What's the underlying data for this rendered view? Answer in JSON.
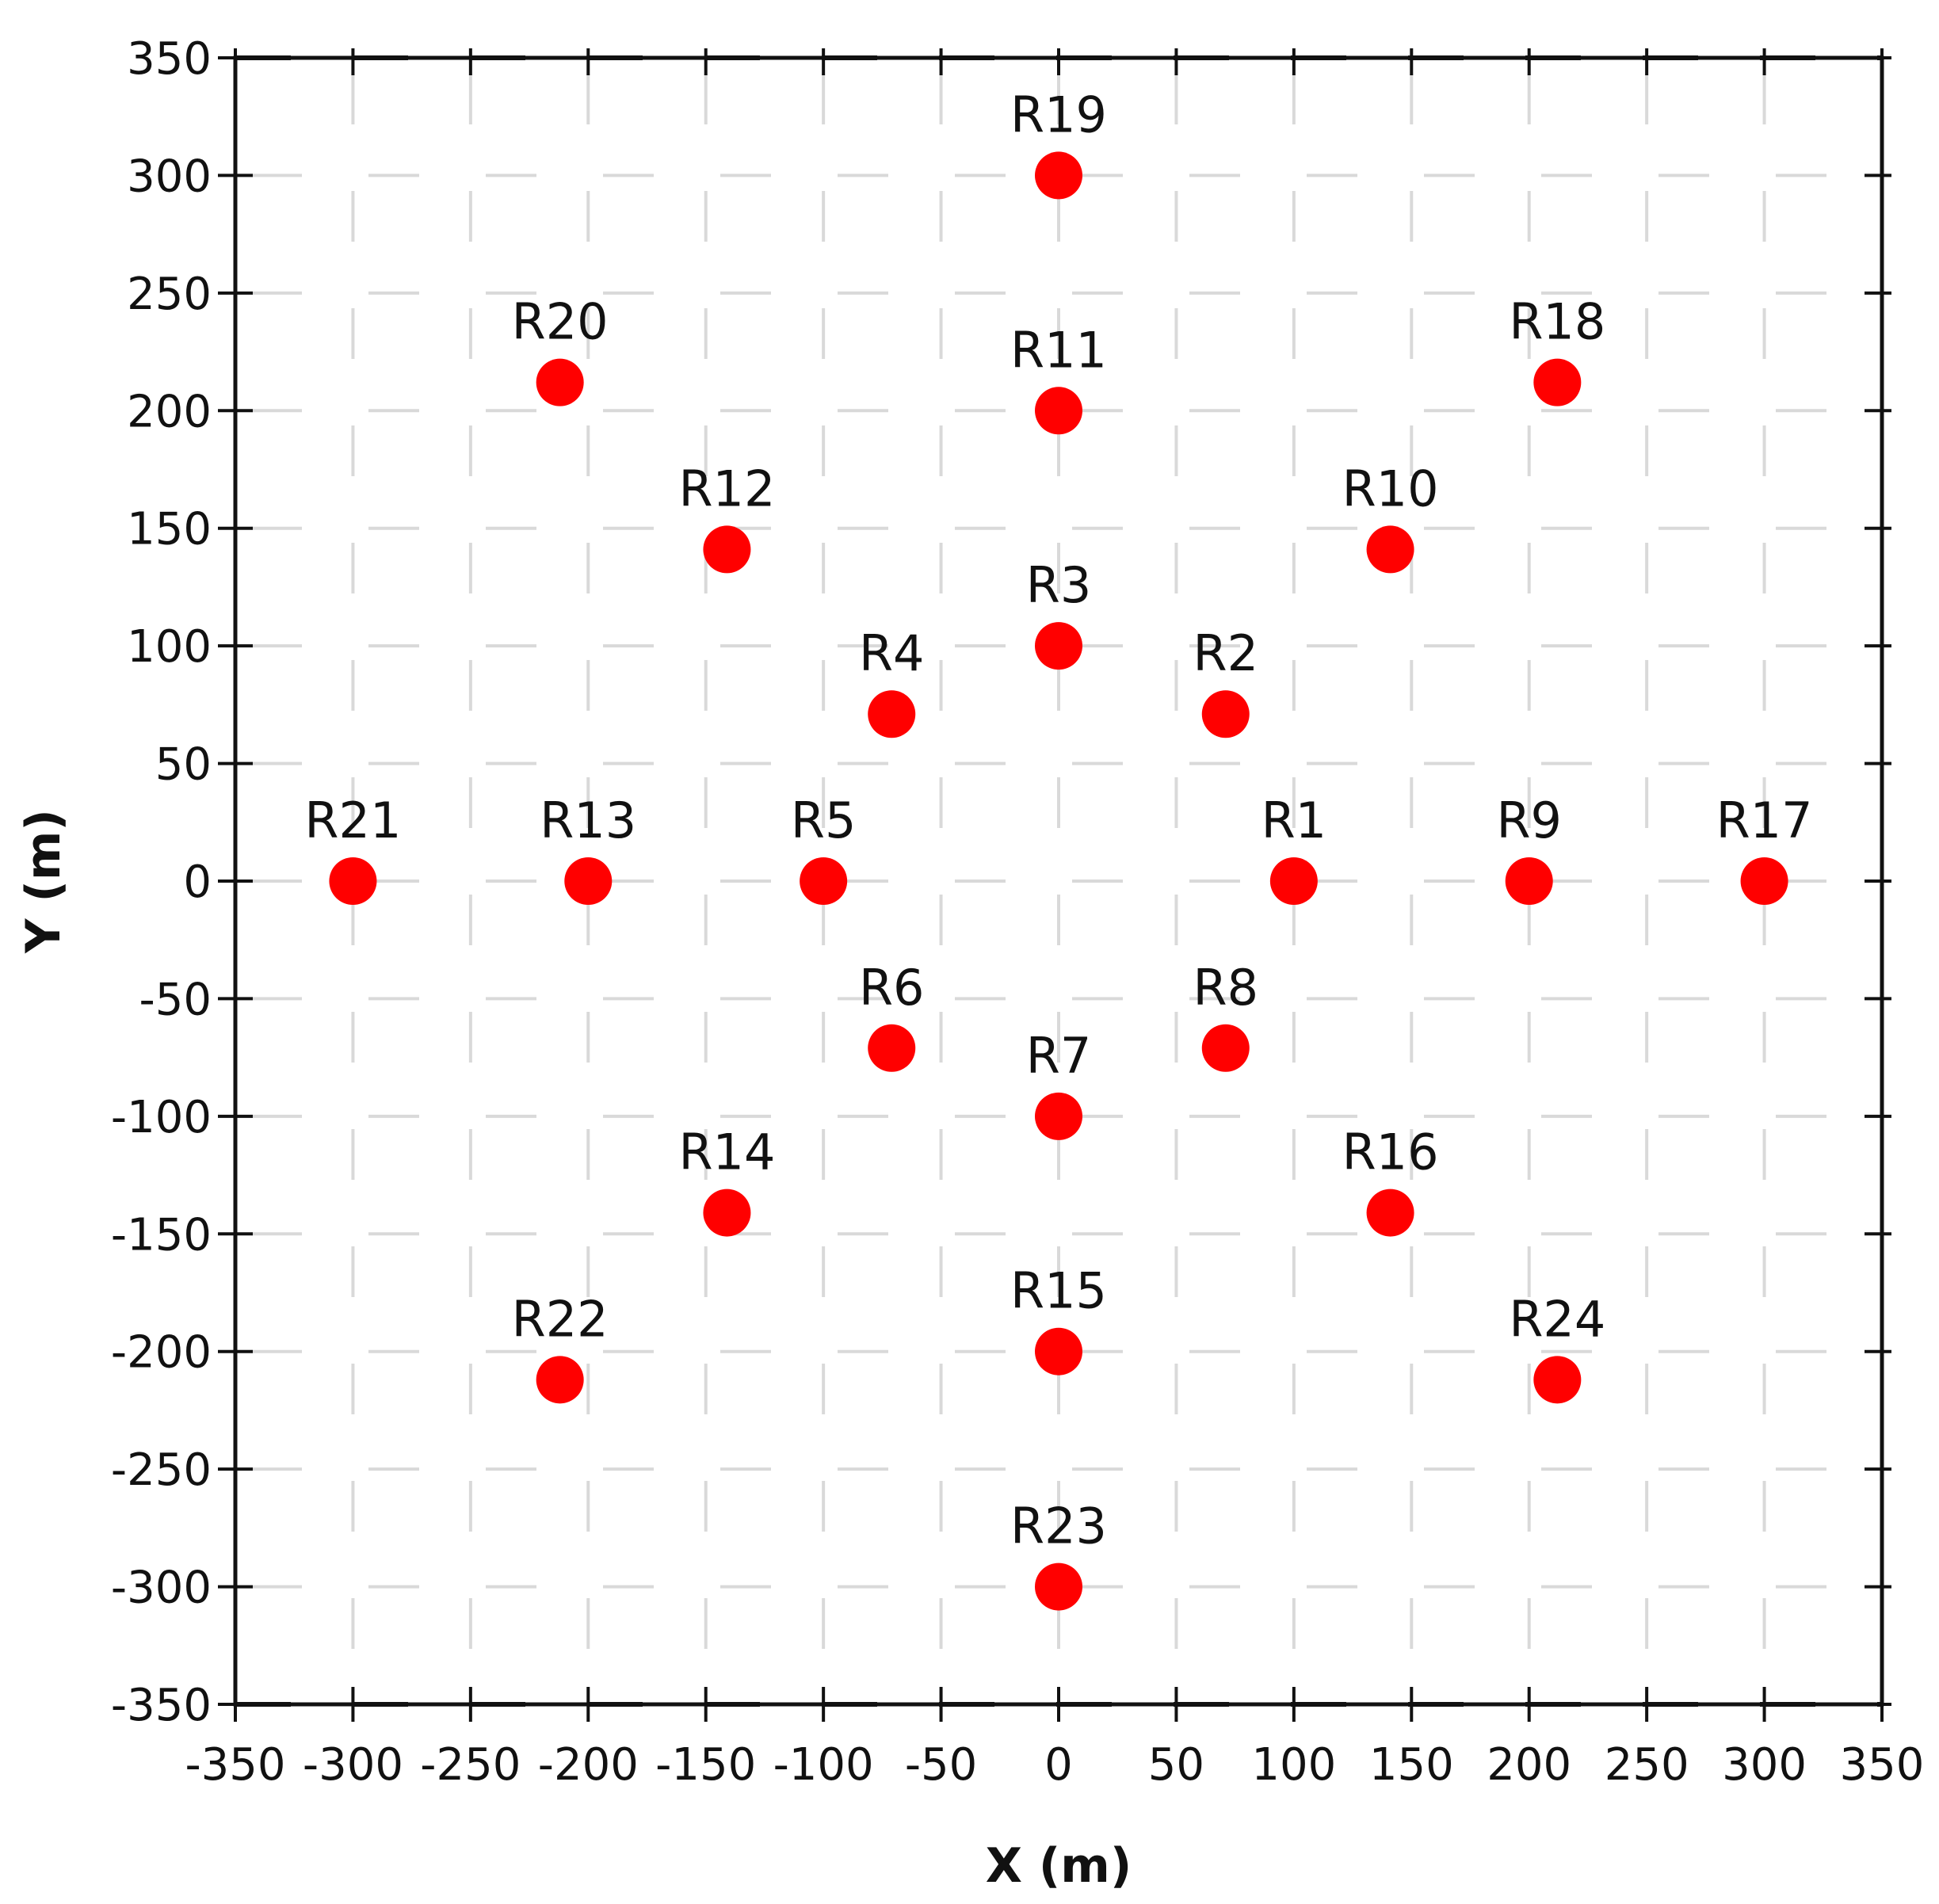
{
  "chart_data": {
    "type": "scatter",
    "title": "",
    "xlabel": "X (m)",
    "ylabel": "Y (m)",
    "xlim": [
      -350,
      350
    ],
    "ylim": [
      -350,
      350
    ],
    "xticks": [
      -350,
      -300,
      -250,
      -200,
      -150,
      -100,
      -50,
      0,
      50,
      100,
      150,
      200,
      250,
      300,
      350
    ],
    "yticks": [
      -350,
      -300,
      -250,
      -200,
      -150,
      -100,
      -50,
      0,
      50,
      100,
      150,
      200,
      250,
      300,
      350
    ],
    "grid": true,
    "marker_color": "#ff0000",
    "points": [
      {
        "label": "R1",
        "x": 100,
        "y": 0
      },
      {
        "label": "R2",
        "x": 71,
        "y": 71
      },
      {
        "label": "R3",
        "x": 0,
        "y": 100
      },
      {
        "label": "R4",
        "x": -71,
        "y": 71
      },
      {
        "label": "R5",
        "x": -100,
        "y": 0
      },
      {
        "label": "R6",
        "x": -71,
        "y": -71
      },
      {
        "label": "R7",
        "x": 0,
        "y": -100
      },
      {
        "label": "R8",
        "x": 71,
        "y": -71
      },
      {
        "label": "R9",
        "x": 200,
        "y": 0
      },
      {
        "label": "R10",
        "x": 141,
        "y": 141
      },
      {
        "label": "R11",
        "x": 0,
        "y": 200
      },
      {
        "label": "R12",
        "x": -141,
        "y": 141
      },
      {
        "label": "R13",
        "x": -200,
        "y": 0
      },
      {
        "label": "R14",
        "x": -141,
        "y": -141
      },
      {
        "label": "R15",
        "x": 0,
        "y": -200
      },
      {
        "label": "R16",
        "x": 141,
        "y": -141
      },
      {
        "label": "R17",
        "x": 300,
        "y": 0
      },
      {
        "label": "R18",
        "x": 212,
        "y": 212
      },
      {
        "label": "R19",
        "x": 0,
        "y": 300
      },
      {
        "label": "R20",
        "x": -212,
        "y": 212
      },
      {
        "label": "R21",
        "x": -300,
        "y": 0
      },
      {
        "label": "R22",
        "x": -212,
        "y": -212
      },
      {
        "label": "R23",
        "x": 0,
        "y": -300
      },
      {
        "label": "R24",
        "x": 212,
        "y": -212
      }
    ]
  }
}
